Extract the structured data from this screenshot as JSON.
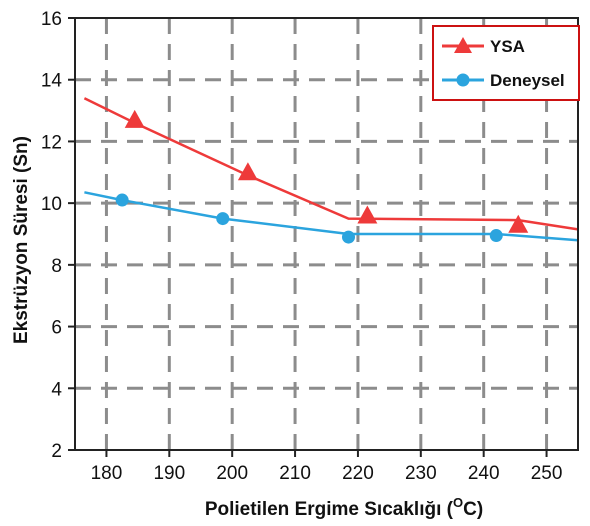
{
  "chart_data": {
    "type": "line",
    "title": "",
    "xlabel": "Polietilen Ergime Sıcaklığı (",
    "xlabel_unit_sup": "O",
    "xlabel_unit_rest": "C)",
    "ylabel": "Ekstrüzyon Süresi (Sn)",
    "xlim": [
      175,
      255
    ],
    "ylim": [
      2,
      16
    ],
    "x_ticks": [
      180,
      190,
      200,
      210,
      220,
      230,
      240,
      250
    ],
    "y_ticks": [
      2,
      4,
      6,
      8,
      10,
      12,
      14,
      16
    ],
    "grid": true,
    "legend_position": "top-right",
    "series": [
      {
        "name": "YSA",
        "color": "#ee3a3a",
        "marker": "triangle",
        "line": [
          [
            176.5,
            13.4
          ],
          [
            184.5,
            12.6
          ],
          [
            202.5,
            10.9
          ],
          [
            218.5,
            9.5
          ],
          [
            245.5,
            9.45
          ],
          [
            255,
            9.15
          ]
        ],
        "points": [
          [
            184.5,
            12.7
          ],
          [
            202.5,
            11.0
          ],
          [
            221.5,
            9.6
          ],
          [
            245.5,
            9.3
          ]
        ]
      },
      {
        "name": "Deneysel",
        "color": "#2ba4de",
        "marker": "circle",
        "line": [
          [
            176.5,
            10.35
          ],
          [
            182.5,
            10.1
          ],
          [
            198.5,
            9.5
          ],
          [
            218.5,
            9.0
          ],
          [
            242,
            9.0
          ],
          [
            255,
            8.8
          ]
        ],
        "points": [
          [
            182.5,
            10.1
          ],
          [
            198.5,
            9.5
          ],
          [
            218.5,
            8.9
          ],
          [
            242,
            8.95
          ]
        ]
      }
    ]
  }
}
